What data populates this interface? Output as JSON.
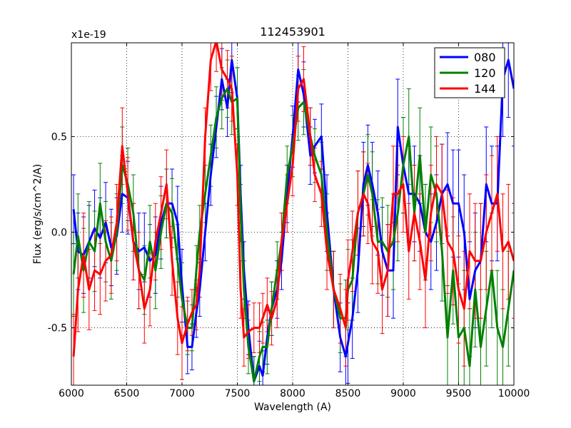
{
  "chart_data": {
    "type": "line",
    "title": "112453901",
    "xlabel": "Wavelength (A)",
    "ylabel": "Flux (erg/s/cm^2/A)",
    "offset_label": "x1e-19",
    "xlim": [
      6000,
      10000
    ],
    "ylim": [
      -0.8,
      0.99
    ],
    "xticks": [
      6000,
      6500,
      7000,
      7500,
      8000,
      8500,
      9000,
      9500,
      10000
    ],
    "yticks": [
      -0.5,
      0.0,
      0.5
    ],
    "ytick_labels": [
      "-0.5",
      "0.0",
      "0.5"
    ],
    "grid": true,
    "legend_position": "top-right",
    "series": [
      {
        "name": "080",
        "color": "#0000ff",
        "x": [
          6020,
          6060,
          6110,
          6160,
          6210,
          6260,
          6310,
          6360,
          6410,
          6460,
          6510,
          6560,
          6610,
          6660,
          6710,
          6760,
          6810,
          6860,
          6910,
          6960,
          7000,
          7050,
          7090,
          7130,
          7160,
          7210,
          7260,
          7310,
          7360,
          7410,
          7450,
          7500,
          7530,
          7560,
          7600,
          7650,
          7700,
          7730,
          7770,
          7810,
          7860,
          7900,
          7950,
          8000,
          8050,
          8100,
          8160,
          8200,
          8260,
          8310,
          8370,
          8430,
          8480,
          8500,
          8540,
          8590,
          8640,
          8680,
          8720,
          8770,
          8810,
          8860,
          8910,
          8950,
          9000,
          9050,
          9100,
          9150,
          9200,
          9250,
          9300,
          9350,
          9400,
          9450,
          9500,
          9550,
          9600,
          9650,
          9700,
          9750,
          9800,
          9850,
          9900,
          9950,
          10000
        ],
        "values": [
          0.12,
          -0.1,
          -0.12,
          -0.05,
          0.02,
          -0.03,
          0.05,
          -0.08,
          -0.02,
          0.2,
          0.18,
          -0.05,
          -0.1,
          -0.08,
          -0.15,
          -0.12,
          0.05,
          0.15,
          0.15,
          0.05,
          -0.28,
          -0.6,
          -0.6,
          -0.42,
          -0.3,
          0.0,
          0.3,
          0.55,
          0.8,
          0.65,
          0.9,
          0.7,
          0.2,
          -0.2,
          -0.5,
          -0.78,
          -0.7,
          -0.75,
          -0.55,
          -0.4,
          -0.3,
          -0.15,
          0.2,
          0.5,
          0.85,
          0.72,
          0.4,
          0.45,
          0.5,
          0.1,
          -0.3,
          -0.55,
          -0.65,
          -0.58,
          -0.45,
          -0.2,
          0.25,
          0.35,
          0.25,
          0.1,
          -0.1,
          -0.2,
          -0.2,
          0.55,
          0.35,
          0.2,
          0.2,
          0.15,
          0.0,
          -0.05,
          0.05,
          0.2,
          0.25,
          0.15,
          0.15,
          0.0,
          -0.35,
          -0.2,
          -0.15,
          0.25,
          0.15,
          0.15,
          0.8,
          0.9,
          0.75
        ],
        "errors": [
          0.18,
          0.2,
          0.2,
          0.19,
          0.2,
          0.21,
          0.21,
          0.2,
          0.2,
          0.2,
          0.19,
          0.2,
          0.2,
          0.18,
          0.19,
          0.2,
          0.19,
          0.18,
          0.18,
          0.19,
          0.19,
          0.14,
          0.12,
          0.13,
          0.14,
          0.15,
          0.16,
          0.16,
          0.16,
          0.15,
          0.17,
          0.16,
          0.15,
          0.15,
          0.14,
          0.13,
          0.13,
          0.13,
          0.14,
          0.14,
          0.15,
          0.15,
          0.15,
          0.16,
          0.17,
          0.17,
          0.15,
          0.14,
          0.17,
          0.2,
          0.2,
          0.18,
          0.2,
          0.21,
          0.21,
          0.22,
          0.22,
          0.21,
          0.22,
          0.22,
          0.23,
          0.24,
          0.25,
          0.25,
          0.25,
          0.25,
          0.25,
          0.25,
          0.25,
          0.25,
          0.25,
          0.26,
          0.27,
          0.28,
          0.28,
          0.3,
          0.3,
          0.3,
          0.3,
          0.3,
          0.3,
          0.3,
          0.3,
          0.3,
          0.3
        ]
      },
      {
        "name": "120",
        "color": "#008000",
        "x": [
          6020,
          6060,
          6110,
          6160,
          6210,
          6260,
          6310,
          6360,
          6410,
          6460,
          6510,
          6560,
          6610,
          6660,
          6710,
          6760,
          6810,
          6860,
          6910,
          6960,
          7000,
          7050,
          7090,
          7130,
          7160,
          7210,
          7260,
          7310,
          7360,
          7410,
          7450,
          7500,
          7530,
          7560,
          7600,
          7650,
          7700,
          7730,
          7770,
          7810,
          7860,
          7900,
          7950,
          8000,
          8050,
          8100,
          8160,
          8200,
          8260,
          8310,
          8370,
          8430,
          8480,
          8500,
          8540,
          8590,
          8640,
          8680,
          8720,
          8770,
          8810,
          8860,
          8910,
          8950,
          9000,
          9050,
          9100,
          9150,
          9200,
          9250,
          9300,
          9350,
          9400,
          9450,
          9500,
          9550,
          9600,
          9650,
          9700,
          9750,
          9800,
          9850,
          9900,
          9950,
          10000
        ],
        "values": [
          -0.22,
          -0.02,
          -0.2,
          -0.05,
          -0.1,
          0.15,
          -0.05,
          -0.15,
          0.0,
          0.35,
          0.25,
          0.1,
          -0.2,
          -0.25,
          -0.05,
          -0.2,
          0.0,
          0.15,
          0.1,
          -0.15,
          -0.35,
          -0.5,
          -0.5,
          -0.2,
          0.0,
          0.2,
          0.4,
          0.6,
          0.7,
          0.75,
          0.68,
          0.7,
          0.1,
          -0.3,
          -0.6,
          -0.78,
          -0.65,
          -0.6,
          -0.6,
          -0.4,
          -0.2,
          -0.05,
          0.3,
          0.45,
          0.65,
          0.68,
          0.5,
          0.4,
          0.3,
          0.0,
          -0.3,
          -0.45,
          -0.45,
          -0.3,
          -0.25,
          0.1,
          0.2,
          0.3,
          0.2,
          -0.05,
          -0.05,
          -0.1,
          -0.05,
          0.1,
          0.35,
          0.5,
          0.1,
          0.4,
          0.0,
          0.3,
          0.2,
          -0.1,
          -0.55,
          -0.2,
          -0.55,
          -0.5,
          -0.7,
          -0.3,
          -0.6,
          -0.4,
          -0.2,
          -0.5,
          -0.6,
          -0.4,
          -0.2
        ],
        "errors": [
          0.22,
          0.22,
          0.22,
          0.21,
          0.21,
          0.21,
          0.21,
          0.2,
          0.2,
          0.2,
          0.19,
          0.2,
          0.2,
          0.18,
          0.19,
          0.2,
          0.19,
          0.18,
          0.18,
          0.19,
          0.19,
          0.14,
          0.12,
          0.13,
          0.14,
          0.15,
          0.16,
          0.16,
          0.16,
          0.15,
          0.17,
          0.16,
          0.15,
          0.15,
          0.14,
          0.13,
          0.13,
          0.13,
          0.14,
          0.14,
          0.15,
          0.15,
          0.15,
          0.16,
          0.17,
          0.17,
          0.15,
          0.14,
          0.17,
          0.2,
          0.2,
          0.18,
          0.2,
          0.21,
          0.21,
          0.22,
          0.22,
          0.21,
          0.22,
          0.22,
          0.23,
          0.24,
          0.25,
          0.25,
          0.25,
          0.25,
          0.25,
          0.25,
          0.25,
          0.25,
          0.25,
          0.26,
          0.27,
          0.28,
          0.28,
          0.3,
          0.3,
          0.3,
          0.3,
          0.3,
          0.3,
          0.3,
          0.3,
          0.3,
          0.3
        ]
      },
      {
        "name": "144",
        "color": "#ff0000",
        "x": [
          6020,
          6060,
          6110,
          6160,
          6210,
          6260,
          6310,
          6360,
          6410,
          6460,
          6510,
          6560,
          6610,
          6660,
          6710,
          6760,
          6810,
          6860,
          6910,
          6960,
          7000,
          7050,
          7090,
          7130,
          7160,
          7210,
          7260,
          7310,
          7360,
          7410,
          7450,
          7500,
          7530,
          7560,
          7600,
          7650,
          7700,
          7730,
          7770,
          7810,
          7860,
          7900,
          7950,
          8000,
          8050,
          8100,
          8160,
          8200,
          8260,
          8310,
          8370,
          8430,
          8480,
          8500,
          8540,
          8590,
          8640,
          8680,
          8720,
          8770,
          8810,
          8860,
          8910,
          8950,
          9000,
          9050,
          9100,
          9150,
          9200,
          9250,
          9300,
          9350,
          9400,
          9450,
          9500,
          9550,
          9600,
          9650,
          9700,
          9750,
          9800,
          9850,
          9900,
          9950,
          10000
        ],
        "values": [
          -0.65,
          -0.3,
          -0.12,
          -0.3,
          -0.2,
          -0.22,
          -0.15,
          -0.12,
          0.05,
          0.45,
          0.2,
          -0.05,
          -0.2,
          -0.4,
          -0.3,
          -0.05,
          0.1,
          0.25,
          -0.15,
          -0.45,
          -0.58,
          -0.48,
          -0.42,
          -0.38,
          -0.2,
          0.5,
          0.9,
          1.0,
          0.85,
          0.8,
          0.75,
          0.3,
          -0.3,
          -0.55,
          -0.52,
          -0.5,
          -0.5,
          -0.45,
          -0.38,
          -0.45,
          -0.35,
          -0.05,
          0.15,
          0.35,
          0.75,
          0.8,
          0.5,
          0.3,
          0.2,
          -0.1,
          -0.3,
          -0.4,
          -0.5,
          -0.25,
          -0.1,
          0.1,
          0.2,
          0.15,
          -0.05,
          -0.1,
          -0.3,
          -0.2,
          0.2,
          0.2,
          0.25,
          -0.1,
          0.1,
          -0.05,
          -0.25,
          0.1,
          0.25,
          0.2,
          -0.05,
          -0.1,
          -0.3,
          -0.4,
          -0.1,
          -0.15,
          -0.15,
          0.0,
          0.1,
          0.2,
          -0.1,
          -0.05,
          -0.15
        ],
        "errors": [
          0.22,
          0.22,
          0.22,
          0.21,
          0.21,
          0.21,
          0.21,
          0.2,
          0.2,
          0.2,
          0.19,
          0.2,
          0.2,
          0.18,
          0.19,
          0.2,
          0.19,
          0.18,
          0.18,
          0.19,
          0.19,
          0.14,
          0.12,
          0.13,
          0.14,
          0.15,
          0.16,
          0.16,
          0.16,
          0.15,
          0.17,
          0.16,
          0.15,
          0.15,
          0.14,
          0.13,
          0.13,
          0.13,
          0.14,
          0.14,
          0.15,
          0.15,
          0.15,
          0.16,
          0.17,
          0.17,
          0.15,
          0.14,
          0.17,
          0.2,
          0.2,
          0.18,
          0.2,
          0.21,
          0.21,
          0.22,
          0.22,
          0.21,
          0.22,
          0.22,
          0.23,
          0.24,
          0.25,
          0.25,
          0.25,
          0.25,
          0.25,
          0.25,
          0.25,
          0.25,
          0.25,
          0.26,
          0.27,
          0.28,
          0.28,
          0.3,
          0.3,
          0.3,
          0.3,
          0.3,
          0.3,
          0.3,
          0.3,
          0.3,
          0.3
        ]
      }
    ]
  }
}
